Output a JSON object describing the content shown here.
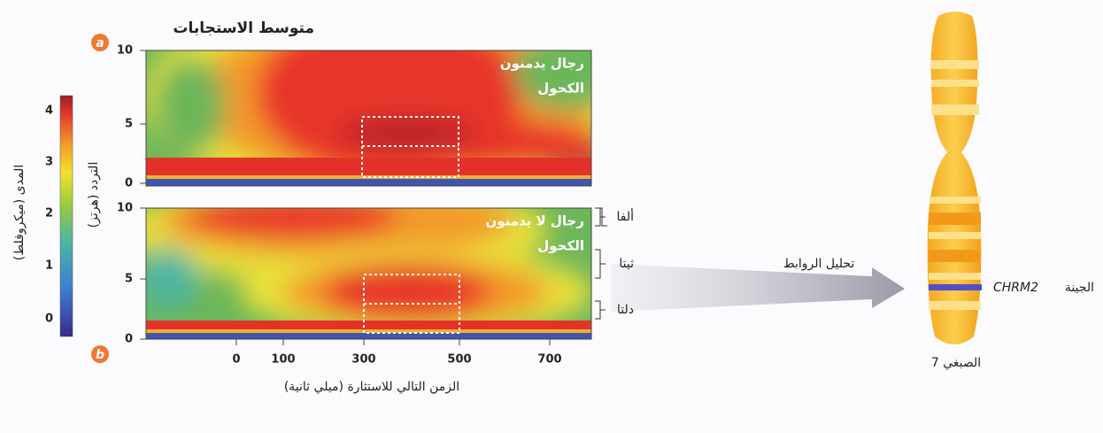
{
  "figure": {
    "title": "متوسط الاستجابات",
    "panels": [
      {
        "badge": "a",
        "label_lines": [
          "رجال يدمنون",
          "الكحول"
        ]
      },
      {
        "badge": "b",
        "label_lines": [
          "رجال لا يدمنون",
          "الكحول"
        ]
      }
    ],
    "frequency_ticks": [
      "10",
      "5",
      "0"
    ],
    "time_ticks": [
      "0",
      "100",
      "300",
      "500",
      "700"
    ],
    "x_axis_label": "الزمن التالي للاستثارة (ميلي ثانية)",
    "frequency_label": "التردد (هرتز)",
    "amplitude_label": "المدى (ميكروفلط)",
    "colorbar_ticks": [
      "4",
      "3",
      "2",
      "1",
      "0"
    ],
    "bands": [
      "ألفا",
      "ثيتا",
      "دلتا"
    ],
    "arrow_label": "تحليل الروابط",
    "gene_word": "الجينة",
    "gene_name": "CHRM2",
    "chromosome_label": "الصبغي 7"
  }
}
